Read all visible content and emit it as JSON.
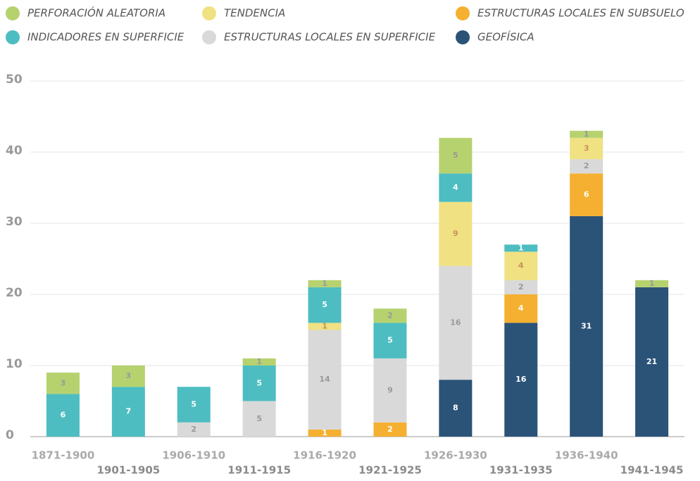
{
  "chart_data": {
    "type": "stacked_bar",
    "categories": [
      "1871-1900",
      "1901-1905",
      "1906-1910",
      "1911-1915",
      "1916-1920",
      "1921-1925",
      "1926-1930",
      "1931-1935",
      "1936-1940",
      "1941-1945"
    ],
    "series": [
      {
        "name": "GEOFÍSICA",
        "color": "#2b5378",
        "values": [
          null,
          null,
          null,
          null,
          null,
          null,
          8,
          16,
          31,
          21
        ]
      },
      {
        "name": "ESTRUCTURAS LOCALES EN SUBSUELO",
        "color": "#f5b031",
        "values": [
          null,
          null,
          null,
          null,
          1,
          2,
          null,
          4,
          6,
          null
        ]
      },
      {
        "name": "ESTRUCTURAS LOCALES EN SUPERFICIE",
        "color": "#d9d9d9",
        "values": [
          null,
          null,
          2,
          5,
          14,
          9,
          16,
          2,
          2,
          null
        ]
      },
      {
        "name": "TENDENCIA",
        "color": "#f0e183",
        "values": [
          null,
          null,
          null,
          null,
          1,
          null,
          9,
          4,
          3,
          null
        ]
      },
      {
        "name": "INDICADORES EN SUPERFICIE",
        "color": "#4dbdc1",
        "values": [
          6,
          7,
          5,
          5,
          5,
          5,
          4,
          1,
          null,
          null
        ]
      },
      {
        "name": "PERFORACIÓN ALEATORIA",
        "color": "#b6d26f",
        "values": [
          3,
          3,
          null,
          1,
          1,
          2,
          5,
          null,
          1,
          1
        ]
      }
    ],
    "ylim": [
      0,
      50
    ],
    "yticks": [
      0,
      10,
      20,
      30,
      40,
      50
    ],
    "grid": true
  }
}
